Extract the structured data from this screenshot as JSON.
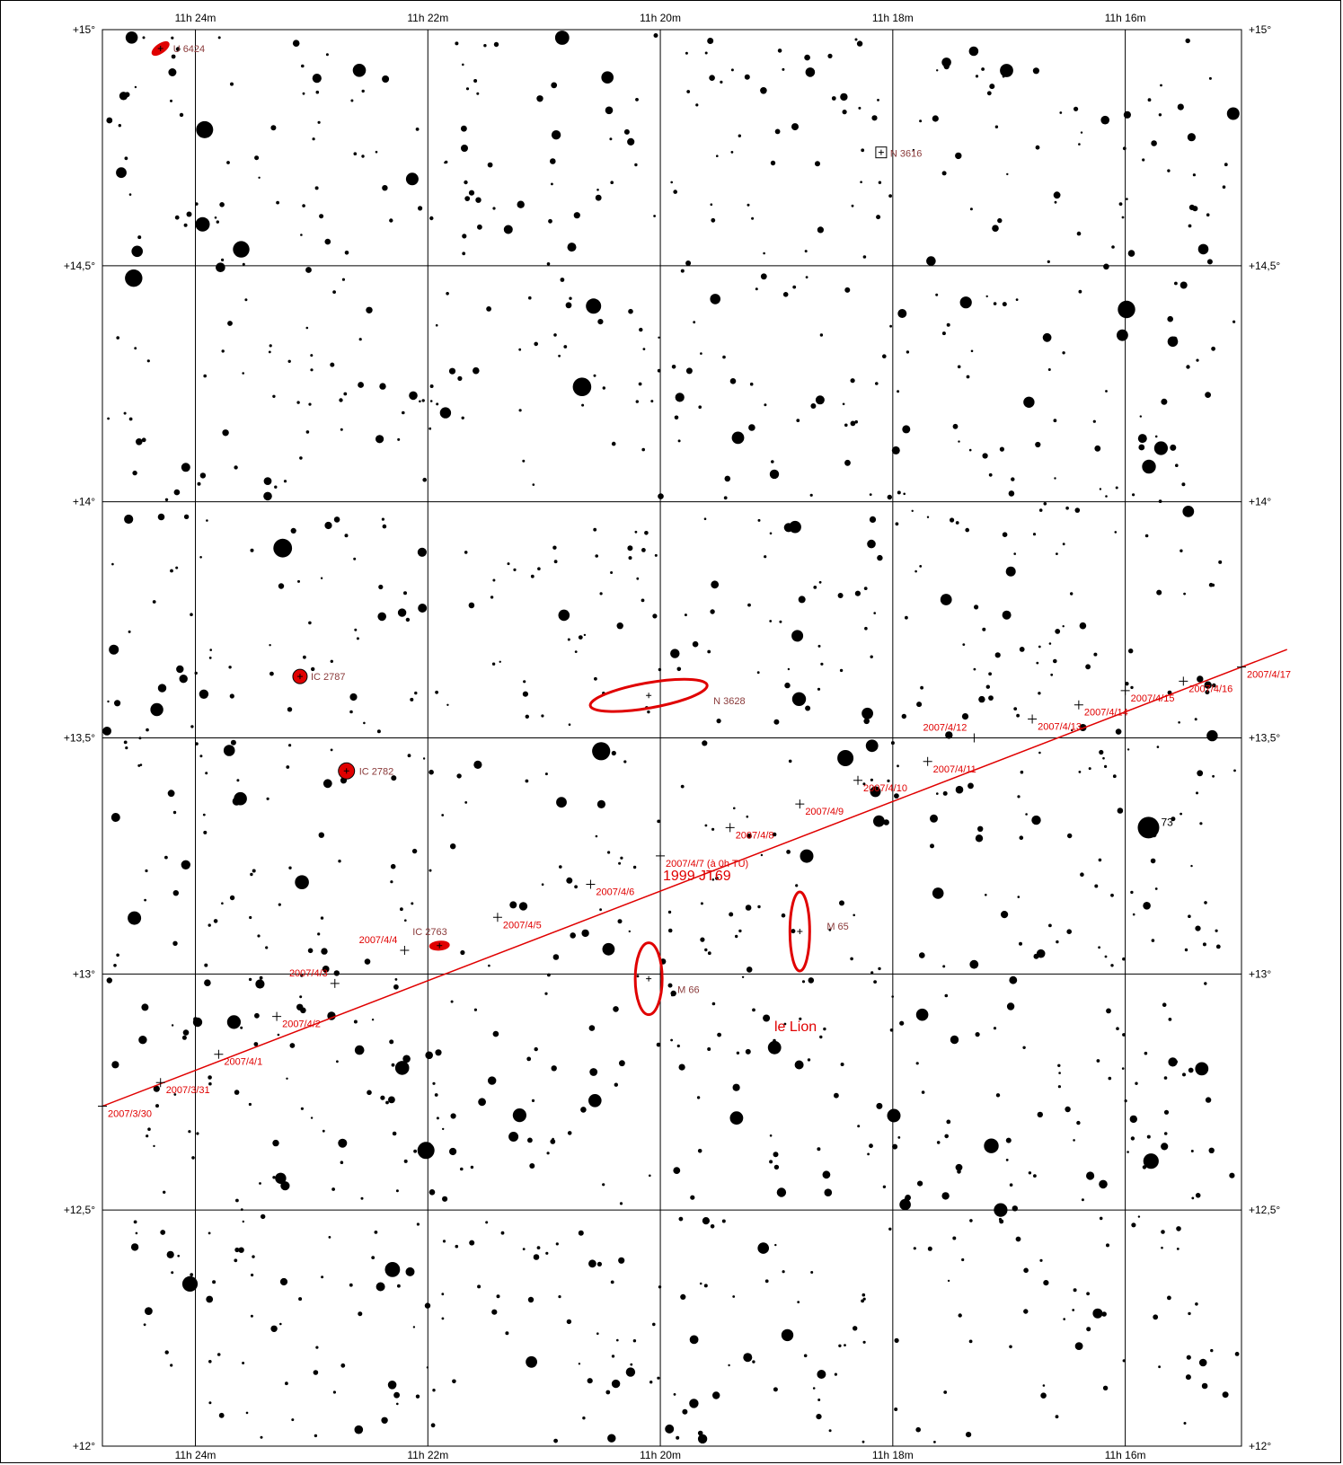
{
  "axes": {
    "ra_ticks": [
      {
        "label": "11h 24m",
        "ra_min": 24
      },
      {
        "label": "11h 22m",
        "ra_min": 22
      },
      {
        "label": "11h 20m",
        "ra_min": 20
      },
      {
        "label": "11h 18m",
        "ra_min": 18
      },
      {
        "label": "11h 16m",
        "ra_min": 16
      }
    ],
    "dec_ticks": [
      {
        "label": "+15°",
        "dec": 15.0
      },
      {
        "label": "+14,5°",
        "dec": 14.5
      },
      {
        "label": "+14°",
        "dec": 14.0
      },
      {
        "label": "+13,5°",
        "dec": 13.5
      },
      {
        "label": "+13°",
        "dec": 13.0
      },
      {
        "label": "+12,5°",
        "dec": 12.5
      },
      {
        "label": "+12°",
        "dec": 12.0
      }
    ],
    "ra_range_min": [
      24.8,
      15.0
    ],
    "dec_range": [
      12.0,
      15.0
    ],
    "grid": true
  },
  "colors": {
    "track": "#e00000",
    "galaxy_label": "#8a3a3a",
    "star": "#000000",
    "grid": "#000000"
  },
  "object_name": "1999 JT69",
  "constellation_label": "le Lion",
  "track": [
    {
      "date": "2007/3/30",
      "ra_min": 24.8,
      "dec": 12.72
    },
    {
      "date": "2007/3/31",
      "ra_min": 24.3,
      "dec": 12.77
    },
    {
      "date": "2007/4/1",
      "ra_min": 23.8,
      "dec": 12.83
    },
    {
      "date": "2007/4/2",
      "ra_min": 23.3,
      "dec": 12.91
    },
    {
      "date": "2007/4/3",
      "ra_min": 22.8,
      "dec": 12.98
    },
    {
      "date": "2007/4/4",
      "ra_min": 22.2,
      "dec": 13.05
    },
    {
      "date": "2007/4/5",
      "ra_min": 21.4,
      "dec": 13.12
    },
    {
      "date": "2007/4/6",
      "ra_min": 20.6,
      "dec": 13.19
    },
    {
      "date": "2007/4/7 (à 0h TU)",
      "ra_min": 20.0,
      "dec": 13.25
    },
    {
      "date": "2007/4/8",
      "ra_min": 19.4,
      "dec": 13.31
    },
    {
      "date": "2007/4/9",
      "ra_min": 18.8,
      "dec": 13.36
    },
    {
      "date": "2007/4/10",
      "ra_min": 18.3,
      "dec": 13.41
    },
    {
      "date": "2007/4/11",
      "ra_min": 17.7,
      "dec": 13.45
    },
    {
      "date": "2007/4/12",
      "ra_min": 17.3,
      "dec": 13.5
    },
    {
      "date": "2007/4/13",
      "ra_min": 16.8,
      "dec": 13.54
    },
    {
      "date": "2007/4/14",
      "ra_min": 16.4,
      "dec": 13.57
    },
    {
      "date": "2007/4/15",
      "ra_min": 16.0,
      "dec": 13.6
    },
    {
      "date": "2007/4/16",
      "ra_min": 15.5,
      "dec": 13.62
    },
    {
      "date": "2007/4/17",
      "ra_min": 15.0,
      "dec": 13.65
    }
  ],
  "deep_sky": [
    {
      "name": "U 6424",
      "ra_min": 24.3,
      "dec": 14.96
    },
    {
      "name": "N 3616",
      "ra_min": 18.1,
      "dec": 14.74
    },
    {
      "name": "IC 2787",
      "ra_min": 23.1,
      "dec": 13.63
    },
    {
      "name": "N 3628",
      "ra_min": 20.1,
      "dec": 13.59
    },
    {
      "name": "IC 2782",
      "ra_min": 22.7,
      "dec": 13.43
    },
    {
      "name": "M 65",
      "ra_min": 18.8,
      "dec": 13.09
    },
    {
      "name": "IC 2763",
      "ra_min": 21.9,
      "dec": 13.06
    },
    {
      "name": "M 66",
      "ra_min": 20.1,
      "dec": 12.99
    }
  ],
  "named_star": {
    "label": "73",
    "ra_min": 15.8,
    "dec": 13.31
  }
}
